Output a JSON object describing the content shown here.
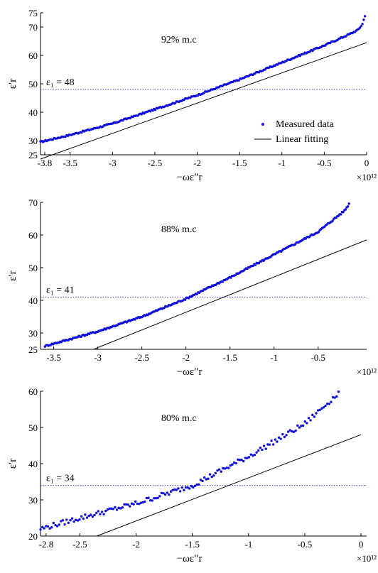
{
  "colors": {
    "measured": "#1010d8",
    "fit": "#000000",
    "ref_line": "#3a3ae0",
    "axis": "#000000"
  },
  "chart_data": [
    {
      "type": "scatter",
      "panel": "top",
      "annotation": "92%  m.c",
      "ref_label": "ε₁ = 48",
      "ref_value": 48,
      "xlim": [
        -3.85,
        0.0
      ],
      "ylim": [
        25,
        75
      ],
      "x_ticks": [
        -3.8,
        -3.5,
        -3,
        -2.5,
        -2,
        -1.5,
        -1,
        -0.5,
        0
      ],
      "x_tick_labels": [
        "-3.8",
        "-3.5",
        "-3",
        "-2.5",
        "-2",
        "-1.5",
        "-1",
        "-0.5",
        "0"
      ],
      "y_ticks": [
        25,
        30,
        40,
        50,
        60,
        70,
        75
      ],
      "y_tick_labels": [
        "25",
        "30",
        "40",
        "50",
        "60",
        "70",
        "75"
      ],
      "xlabel": "−ωε″r",
      "ylabel": "ε′r",
      "multiplier": "×10¹²",
      "legend": [
        "Measured data",
        "Linear fitting"
      ],
      "legend_position": "bottom-right",
      "measured": {
        "x": [
          -3.85,
          -3.5,
          -3.0,
          -2.5,
          -2.0,
          -1.5,
          -1.0,
          -0.5,
          -0.2,
          -0.1,
          -0.05,
          -0.02
        ],
        "y": [
          29.5,
          32.0,
          36.0,
          41.0,
          46.0,
          51.5,
          57.5,
          63.5,
          67.5,
          69.0,
          71.0,
          74.0
        ]
      },
      "fit": {
        "x": [
          -3.85,
          0.0
        ],
        "y": [
          23.5,
          64.5
        ]
      }
    },
    {
      "type": "scatter",
      "panel": "middle",
      "annotation": "88%  m.c",
      "ref_label": "ε₁ = 41",
      "ref_value": 41,
      "xlim": [
        -3.65,
        0.05
      ],
      "ylim": [
        25,
        70
      ],
      "x_ticks": [
        -3.5,
        -3,
        -2.5,
        -2,
        -1.5,
        -1,
        -0.5
      ],
      "x_tick_labels": [
        "-3.5",
        "-3",
        "-2.5",
        "-2",
        "-1.5",
        "-1",
        "-0.5"
      ],
      "y_ticks": [
        25,
        30,
        40,
        50,
        60,
        70
      ],
      "y_tick_labels": [
        "25",
        "30",
        "40",
        "50",
        "60",
        "70"
      ],
      "xlabel": "−ωε″r",
      "ylabel": "ε′r",
      "multiplier": "×10¹²",
      "measured": {
        "x": [
          -3.6,
          -3.0,
          -2.5,
          -2.0,
          -1.5,
          -1.0,
          -0.5,
          -0.2,
          -0.15
        ],
        "y": [
          26.0,
          30.5,
          35.0,
          40.5,
          47.0,
          54.0,
          61.0,
          67.5,
          69.5
        ]
      },
      "fit": {
        "x": [
          -3.05,
          0.05
        ],
        "y": [
          25.0,
          58.5
        ]
      }
    },
    {
      "type": "scatter",
      "panel": "bottom",
      "annotation": "80%  m.c",
      "ref_label": "ε₁ = 34",
      "ref_value": 34,
      "xlim": [
        -2.85,
        0.05
      ],
      "ylim": [
        20,
        60
      ],
      "x_ticks": [
        -2.8,
        -2.5,
        -2,
        -1.5,
        -1,
        -0.5,
        0
      ],
      "x_tick_labels": [
        "-2.8",
        "-2.5",
        "-2",
        "-1.5",
        "-1",
        "-0.5",
        "0"
      ],
      "y_ticks": [
        20,
        30,
        40,
        50,
        60
      ],
      "y_tick_labels": [
        "20",
        "30",
        "40",
        "50",
        "60"
      ],
      "xlabel": "−ωε″r",
      "ylabel": "ε′r",
      "multiplier": "×10¹²",
      "measured": {
        "x": [
          -2.85,
          -2.5,
          -2.0,
          -1.5,
          -1.0,
          -0.5,
          -0.2
        ],
        "y": [
          22.0,
          25.0,
          29.0,
          34.0,
          42.0,
          51.0,
          59.5
        ]
      },
      "fit": {
        "x": [
          -2.35,
          0.0
        ],
        "y": [
          20.0,
          48.0
        ]
      }
    }
  ]
}
